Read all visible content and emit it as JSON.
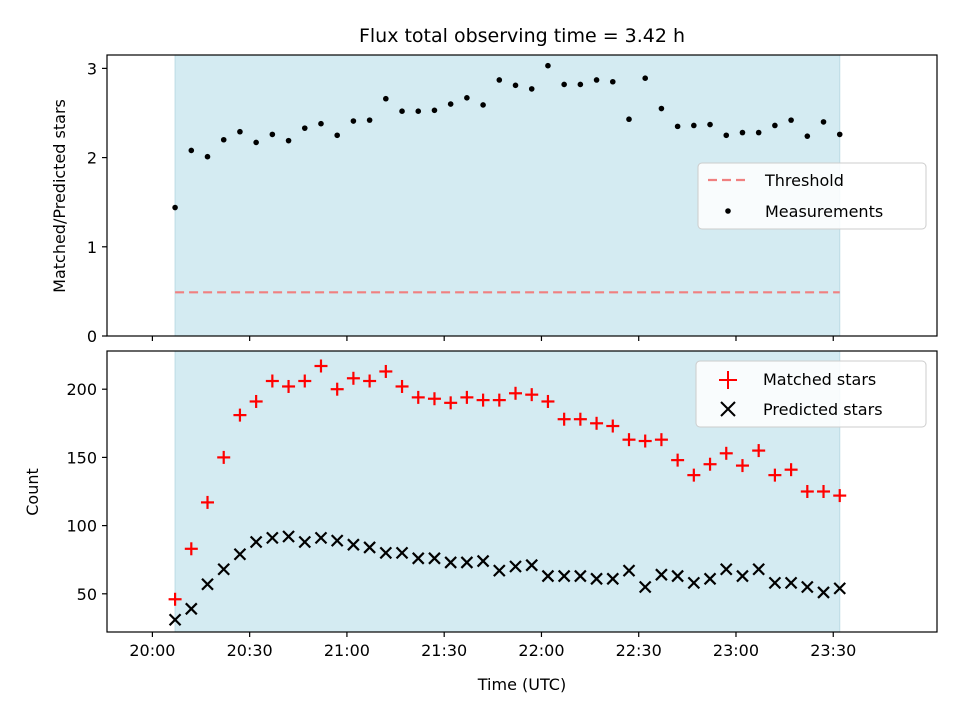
{
  "chart_data": [
    {
      "type": "scatter",
      "title": "Flux total observing time = 3.42 h",
      "ylabel": "Matched/Predicted stars",
      "ylim": [
        0,
        3.15
      ],
      "yticks": [
        0,
        1,
        2,
        3
      ],
      "xlim_minutes_since_2000": [
        -14,
        242
      ],
      "shaded_region": {
        "start": "20:07",
        "end": "23:32",
        "color": "#d4ebf2"
      },
      "threshold": {
        "name": "Threshold",
        "value": 0.49,
        "color": "#f08080"
      },
      "series": [
        {
          "name": "Measurements",
          "color": "#000000",
          "marker": "dot",
          "x": [
            "20:07",
            "20:12",
            "20:17",
            "20:22",
            "20:27",
            "20:32",
            "20:37",
            "20:42",
            "20:47",
            "20:52",
            "20:57",
            "21:02",
            "21:07",
            "21:12",
            "21:17",
            "21:22",
            "21:27",
            "21:32",
            "21:37",
            "21:42",
            "21:47",
            "21:52",
            "21:57",
            "22:02",
            "22:07",
            "22:12",
            "22:17",
            "22:22",
            "22:27",
            "22:32",
            "22:37",
            "22:42",
            "22:47",
            "22:52",
            "22:57",
            "23:02",
            "23:07",
            "23:12",
            "23:17",
            "23:22",
            "23:27",
            "23:32"
          ],
          "y": [
            1.44,
            2.08,
            2.01,
            2.2,
            2.29,
            2.17,
            2.26,
            2.19,
            2.33,
            2.38,
            2.25,
            2.41,
            2.42,
            2.66,
            2.52,
            2.52,
            2.53,
            2.6,
            2.67,
            2.59,
            2.87,
            2.81,
            2.77,
            3.03,
            2.82,
            2.82,
            2.87,
            2.85,
            2.43,
            2.89,
            2.55,
            2.35,
            2.36,
            2.37,
            2.25,
            2.28,
            2.28,
            2.36,
            2.42,
            2.24,
            2.4,
            2.26
          ]
        }
      ],
      "legend": {
        "placement": "center-right"
      }
    },
    {
      "type": "scatter",
      "xlabel": "Time (UTC)",
      "ylabel": "Count",
      "ylim": [
        22,
        228
      ],
      "yticks": [
        50,
        100,
        150,
        200
      ],
      "xticks": [
        "20:00",
        "20:30",
        "21:00",
        "21:30",
        "22:00",
        "22:30",
        "23:00",
        "23:30"
      ],
      "xlim_minutes_since_2000": [
        -14,
        242
      ],
      "shaded_region": {
        "start": "20:07",
        "end": "23:32",
        "color": "#d4ebf2"
      },
      "series": [
        {
          "name": "Matched stars",
          "color": "#ff0000",
          "marker": "plus",
          "x": [
            "20:07",
            "20:12",
            "20:17",
            "20:22",
            "20:27",
            "20:32",
            "20:37",
            "20:42",
            "20:47",
            "20:52",
            "20:57",
            "21:02",
            "21:07",
            "21:12",
            "21:17",
            "21:22",
            "21:27",
            "21:32",
            "21:37",
            "21:42",
            "21:47",
            "21:52",
            "21:57",
            "22:02",
            "22:07",
            "22:12",
            "22:17",
            "22:22",
            "22:27",
            "22:32",
            "22:37",
            "22:42",
            "22:47",
            "22:52",
            "22:57",
            "23:02",
            "23:07",
            "23:12",
            "23:17",
            "23:22",
            "23:27",
            "23:32"
          ],
          "y": [
            46,
            83,
            117,
            150,
            181,
            191,
            206,
            202,
            206,
            217,
            200,
            208,
            206,
            213,
            202,
            194,
            193,
            190,
            194,
            192,
            192,
            197,
            196,
            191,
            178,
            178,
            175,
            173,
            163,
            162,
            163,
            148,
            137,
            145,
            153,
            144,
            155,
            137,
            141,
            125,
            125,
            122
          ]
        },
        {
          "name": "Predicted stars",
          "color": "#000000",
          "marker": "x",
          "x": [
            "20:07",
            "20:12",
            "20:17",
            "20:22",
            "20:27",
            "20:32",
            "20:37",
            "20:42",
            "20:47",
            "20:52",
            "20:57",
            "21:02",
            "21:07",
            "21:12",
            "21:17",
            "21:22",
            "21:27",
            "21:32",
            "21:37",
            "21:42",
            "21:47",
            "21:52",
            "21:57",
            "22:02",
            "22:07",
            "22:12",
            "22:17",
            "22:22",
            "22:27",
            "22:32",
            "22:37",
            "22:42",
            "22:47",
            "22:52",
            "22:57",
            "23:02",
            "23:07",
            "23:12",
            "23:17",
            "23:22",
            "23:27",
            "23:32"
          ],
          "y": [
            31,
            39,
            57,
            68,
            79,
            88,
            91,
            92,
            88,
            91,
            89,
            86,
            84,
            80,
            80,
            76,
            76,
            73,
            73,
            74,
            67,
            70,
            71,
            63,
            63,
            63,
            61,
            61,
            67,
            55,
            64,
            63,
            58,
            61,
            68,
            63,
            68,
            58,
            58,
            55,
            51,
            54
          ]
        }
      ],
      "legend": {
        "placement": "top-right"
      }
    }
  ]
}
